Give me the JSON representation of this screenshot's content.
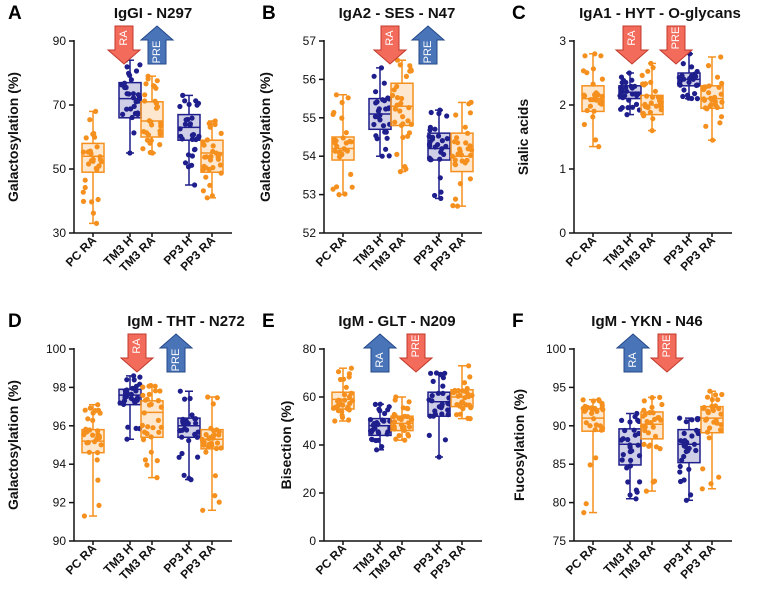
{
  "colors": {
    "orange": "#f5901e",
    "navy": "#1e1e8c",
    "arrow_red_fill": "#f26b5b",
    "arrow_red_stroke": "#c0392b",
    "arrow_blue_fill": "#4a74b8",
    "arrow_blue_stroke": "#24498a"
  },
  "chart_data": [
    {
      "panel": "A",
      "type": "box",
      "title": "IgGI - N297",
      "ylabel": "Galactosylation (%)",
      "ylim": [
        30,
        90
      ],
      "yticks": [
        30,
        50,
        70,
        90
      ],
      "categories": [
        "PC RA",
        "TM3 H",
        "TM3 RA",
        "PP3 H",
        "PP3 RA"
      ],
      "boxes": [
        {
          "min": 33,
          "q1": 49,
          "median": 54,
          "q3": 58,
          "max": 68
        },
        {
          "min": 55,
          "q1": 66,
          "median": 72,
          "q3": 77,
          "max": 84
        },
        {
          "min": 55,
          "q1": 60,
          "median": 65,
          "q3": 71,
          "max": 79
        },
        {
          "min": 45,
          "q1": 59,
          "median": 63,
          "q3": 67,
          "max": 73
        },
        {
          "min": 41,
          "q1": 49,
          "median": 55,
          "q3": 59,
          "max": 65
        }
      ],
      "arrows": [
        {
          "label": "RA",
          "dir": "down",
          "color": "red"
        },
        {
          "label": "PRE",
          "dir": "up",
          "color": "blue"
        }
      ]
    },
    {
      "panel": "B",
      "type": "box",
      "title": "IgA2 - SES - N47",
      "ylabel": "Galactosylation (%)",
      "ylim": [
        52,
        57
      ],
      "yticks": [
        52,
        53,
        54,
        55,
        56,
        57
      ],
      "categories": [
        "PC RA",
        "TM3 H",
        "TM3 RA",
        "PP3 H",
        "PP3 RA"
      ],
      "boxes": [
        {
          "min": 53.0,
          "q1": 53.9,
          "median": 54.2,
          "q3": 54.5,
          "max": 55.6
        },
        {
          "min": 54.0,
          "q1": 54.7,
          "median": 55.1,
          "q3": 55.5,
          "max": 56.3
        },
        {
          "min": 53.6,
          "q1": 54.8,
          "median": 55.3,
          "q3": 55.9,
          "max": 56.5
        },
        {
          "min": 52.9,
          "q1": 53.9,
          "median": 54.2,
          "q3": 54.6,
          "max": 55.2
        },
        {
          "min": 52.7,
          "q1": 53.6,
          "median": 54.0,
          "q3": 54.6,
          "max": 55.4
        }
      ],
      "arrows": [
        {
          "label": "RA",
          "dir": "down",
          "color": "red"
        },
        {
          "label": "PRE",
          "dir": "up",
          "color": "blue"
        }
      ]
    },
    {
      "panel": "C",
      "type": "box",
      "title": "IgA1 - HYT - O-glycans",
      "ylabel": "Sialic acids",
      "ylim": [
        0,
        3
      ],
      "yticks": [
        0,
        1,
        2,
        3
      ],
      "categories": [
        "PC RA",
        "TM3 H",
        "TM3 RA",
        "PP3 H",
        "PP3 RA"
      ],
      "boxes": [
        {
          "min": 1.35,
          "q1": 1.9,
          "median": 2.1,
          "q3": 2.3,
          "max": 2.8
        },
        {
          "min": 1.85,
          "q1": 2.1,
          "median": 2.2,
          "q3": 2.3,
          "max": 2.5
        },
        {
          "min": 1.6,
          "q1": 1.85,
          "median": 2.0,
          "q3": 2.15,
          "max": 2.65
        },
        {
          "min": 2.1,
          "q1": 2.3,
          "median": 2.4,
          "q3": 2.5,
          "max": 2.8
        },
        {
          "min": 1.45,
          "q1": 1.95,
          "median": 2.1,
          "q3": 2.3,
          "max": 2.75
        }
      ],
      "arrows": [
        {
          "label": "RA",
          "dir": "down",
          "color": "red"
        },
        {
          "label": "PRE",
          "dir": "down",
          "color": "red"
        }
      ]
    },
    {
      "panel": "D",
      "type": "box",
      "title": "IgM - THT - N272",
      "ylabel": "Galactosylation (%)",
      "ylim": [
        90,
        100
      ],
      "yticks": [
        90,
        92,
        94,
        96,
        98,
        100
      ],
      "categories": [
        "PC RA",
        "TM3 H",
        "TM3 RA",
        "PP3 H",
        "PP3 RA"
      ],
      "boxes": [
        {
          "min": 91.3,
          "q1": 94.6,
          "median": 95.2,
          "q3": 95.8,
          "max": 97.1
        },
        {
          "min": 95.3,
          "q1": 97.1,
          "median": 97.6,
          "q3": 97.9,
          "max": 98.6
        },
        {
          "min": 93.3,
          "q1": 95.4,
          "median": 96.7,
          "q3": 97.3,
          "max": 98.1
        },
        {
          "min": 93.2,
          "q1": 95.4,
          "median": 96.0,
          "q3": 96.4,
          "max": 97.8
        },
        {
          "min": 91.6,
          "q1": 94.8,
          "median": 95.3,
          "q3": 95.8,
          "max": 97.5
        }
      ],
      "arrows": [
        {
          "label": "RA",
          "dir": "down",
          "color": "red"
        },
        {
          "label": "PRE",
          "dir": "up",
          "color": "blue"
        }
      ]
    },
    {
      "panel": "E",
      "type": "box",
      "title": "IgM - GLT - N209",
      "ylabel": "Bisection (%)",
      "ylim": [
        0,
        80
      ],
      "yticks": [
        0,
        20,
        40,
        60,
        80
      ],
      "categories": [
        "PC RA",
        "TM3 H",
        "TM3 RA",
        "PP3 H",
        "PP3 RA"
      ],
      "boxes": [
        {
          "min": 50,
          "q1": 55,
          "median": 59,
          "q3": 62,
          "max": 72
        },
        {
          "min": 38,
          "q1": 44,
          "median": 48,
          "q3": 51,
          "max": 57
        },
        {
          "min": 42,
          "q1": 46,
          "median": 49,
          "q3": 52,
          "max": 60
        },
        {
          "min": 35,
          "q1": 52,
          "median": 58,
          "q3": 62,
          "max": 70
        },
        {
          "min": 51,
          "q1": 56,
          "median": 60,
          "q3": 63,
          "max": 73
        }
      ],
      "arrows": [
        {
          "label": "RA",
          "dir": "up",
          "color": "blue"
        },
        {
          "label": "PRE",
          "dir": "down",
          "color": "red"
        }
      ]
    },
    {
      "panel": "F",
      "type": "box",
      "title": "IgM - YKN - N46",
      "ylabel": "Fucosylation (%)",
      "ylim": [
        75,
        100
      ],
      "yticks": [
        75,
        80,
        85,
        90,
        95,
        100
      ],
      "categories": [
        "PC RA",
        "TM3 H",
        "TM3 RA",
        "PP3 H",
        "PP3 RA"
      ],
      "boxes": [
        {
          "min": 78.7,
          "q1": 89.3,
          "median": 91.0,
          "q3": 92.2,
          "max": 93.4
        },
        {
          "min": 80.5,
          "q1": 84.9,
          "median": 87.6,
          "q3": 89.6,
          "max": 91.6
        },
        {
          "min": 81.5,
          "q1": 88.3,
          "median": 90.2,
          "q3": 91.8,
          "max": 93.7
        },
        {
          "min": 80.3,
          "q1": 85.2,
          "median": 87.6,
          "q3": 89.5,
          "max": 91.0
        },
        {
          "min": 81.8,
          "q1": 89.1,
          "median": 91.0,
          "q3": 92.5,
          "max": 94.5
        }
      ],
      "arrows": [
        {
          "label": "RA",
          "dir": "up",
          "color": "blue"
        },
        {
          "label": "PRE",
          "dir": "down",
          "color": "red"
        }
      ]
    }
  ]
}
